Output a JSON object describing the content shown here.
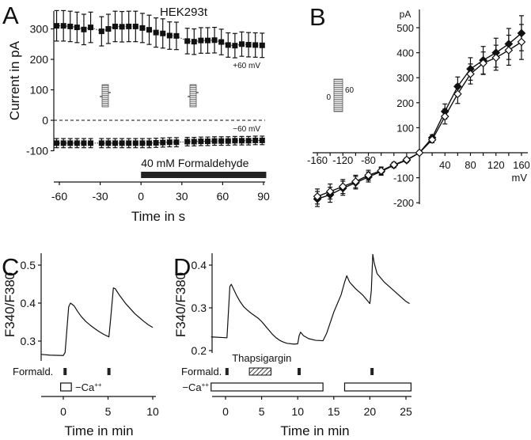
{
  "chart_data": [
    {
      "panel": "A",
      "type": "line",
      "title": "HEK293t",
      "xlabel": "Time in s",
      "ylabel": "Current in pA",
      "xlim": [
        -65,
        92
      ],
      "ylim": [
        -100,
        360
      ],
      "xticks": [
        -60,
        -30,
        0,
        30,
        60,
        90
      ],
      "yticks": [
        300,
        200,
        100,
        0,
        -100
      ],
      "annotation": {
        "label": "40 mM Formaldehyde",
        "range": [
          0,
          92
        ]
      },
      "series": [
        {
          "name": "+60 mV",
          "x": [
            -62,
            -57,
            -52,
            -47,
            -42,
            -37,
            -29,
            -24,
            -19,
            -14,
            -9,
            -4,
            1,
            6,
            11,
            16,
            21,
            26,
            34,
            39,
            44,
            49,
            54,
            59,
            64,
            69,
            74,
            79,
            84,
            89
          ],
          "y": [
            310,
            310,
            308,
            305,
            298,
            305,
            292,
            300,
            308,
            307,
            308,
            308,
            303,
            297,
            288,
            285,
            278,
            277,
            260,
            258,
            262,
            262,
            263,
            257,
            247,
            245,
            250,
            248,
            247,
            246
          ],
          "err": [
            50,
            50,
            50,
            50,
            50,
            50,
            48,
            48,
            50,
            50,
            50,
            50,
            48,
            48,
            48,
            48,
            45,
            45,
            42,
            42,
            42,
            42,
            42,
            42,
            40,
            40,
            40,
            40,
            40,
            40
          ]
        },
        {
          "name": "−60 mV",
          "x": [
            -62,
            -57,
            -52,
            -47,
            -42,
            -37,
            -29,
            -24,
            -19,
            -14,
            -9,
            -4,
            1,
            6,
            11,
            16,
            21,
            26,
            34,
            39,
            44,
            49,
            54,
            59,
            64,
            69,
            74,
            79,
            84,
            89
          ],
          "y": [
            -75,
            -75,
            -75,
            -75,
            -75,
            -75,
            -75,
            -75,
            -75,
            -75,
            -75,
            -75,
            -75,
            -75,
            -74,
            -73,
            -72,
            -72,
            -70,
            -70,
            -69,
            -69,
            -68,
            -68,
            -68,
            -67,
            -67,
            -67,
            -66,
            -66
          ],
          "err": [
            15,
            15,
            15,
            15,
            15,
            15,
            15,
            15,
            15,
            15,
            15,
            15,
            15,
            15,
            15,
            15,
            15,
            15,
            14,
            14,
            14,
            14,
            14,
            14,
            14,
            14,
            14,
            14,
            14,
            14
          ]
        }
      ],
      "protocol_labels": [
        "-30",
        "30"
      ]
    },
    {
      "panel": "B",
      "type": "line",
      "xlabel": "mV",
      "ylabel": "pA",
      "xlim": [
        -165,
        165
      ],
      "ylim": [
        -210,
        560
      ],
      "xticks": [
        -160,
        -120,
        -80,
        40,
        80,
        120,
        160
      ],
      "yticks": [
        500,
        400,
        300,
        200,
        100,
        -100,
        -200
      ],
      "protocol_labels": [
        "0",
        "60"
      ],
      "series": [
        {
          "name": "filled",
          "marker": "filled-diamond",
          "x": [
            -160,
            -140,
            -120,
            -100,
            -80,
            -60,
            -40,
            -20,
            0,
            20,
            40,
            60,
            80,
            100,
            120,
            140,
            160
          ],
          "y": [
            -185,
            -168,
            -142,
            -120,
            -97,
            -75,
            -50,
            -30,
            0,
            60,
            165,
            265,
            335,
            370,
            400,
            435,
            478
          ],
          "err": [
            30,
            30,
            28,
            25,
            20,
            15,
            10,
            8,
            0,
            12,
            30,
            38,
            45,
            55,
            58,
            62,
            70
          ]
        },
        {
          "name": "open",
          "marker": "open-diamond",
          "x": [
            -160,
            -140,
            -120,
            -100,
            -80,
            -60,
            -40,
            -20,
            0,
            20,
            40,
            60,
            80,
            100,
            120,
            140,
            160
          ],
          "y": [
            -175,
            -155,
            -135,
            -115,
            -90,
            -72,
            -48,
            -28,
            0,
            52,
            145,
            235,
            315,
            358,
            380,
            410,
            443
          ],
          "err": [
            30,
            30,
            28,
            25,
            20,
            15,
            10,
            8,
            0,
            12,
            30,
            38,
            40,
            45,
            50,
            60,
            70
          ]
        }
      ]
    },
    {
      "panel": "C",
      "type": "line",
      "xlabel": "Time in min",
      "ylabel": "F340/F380",
      "xlim": [
        -2.5,
        10
      ],
      "ylim": [
        0.25,
        0.53
      ],
      "xticks": [
        0,
        5,
        10
      ],
      "yticks": [
        0.5,
        0.4,
        0.3
      ],
      "formald_label": "Formald.",
      "formald_times": [
        0.2,
        5.1
      ],
      "ca_label": "−Ca",
      "ca_sup": "++",
      "ca_ranges": [
        [
          -0.3,
          0.9
        ]
      ],
      "trace": [
        [
          -2.5,
          0.265
        ],
        [
          -1.5,
          0.263
        ],
        [
          0,
          0.262
        ],
        [
          0.2,
          0.27
        ],
        [
          0.4,
          0.33
        ],
        [
          0.6,
          0.39
        ],
        [
          0.8,
          0.4
        ],
        [
          1.2,
          0.393
        ],
        [
          1.6,
          0.378
        ],
        [
          2,
          0.365
        ],
        [
          2.5,
          0.352
        ],
        [
          3,
          0.342
        ],
        [
          3.5,
          0.333
        ],
        [
          4,
          0.325
        ],
        [
          4.5,
          0.318
        ],
        [
          5.1,
          0.311
        ],
        [
          5.3,
          0.36
        ],
        [
          5.6,
          0.44
        ],
        [
          5.8,
          0.438
        ],
        [
          6.3,
          0.42
        ],
        [
          7,
          0.398
        ],
        [
          7.5,
          0.385
        ],
        [
          8,
          0.372
        ],
        [
          8.5,
          0.362
        ],
        [
          9,
          0.352
        ],
        [
          9.5,
          0.343
        ],
        [
          10,
          0.336
        ]
      ]
    },
    {
      "panel": "D",
      "type": "line",
      "xlabel": "Time in min",
      "ylabel": "F340/F380",
      "xlim": [
        -2,
        26
      ],
      "ylim": [
        0.2,
        0.43
      ],
      "xticks": [
        0,
        5,
        10,
        15,
        20,
        25
      ],
      "yticks": [
        0.4,
        0.3,
        0.2
      ],
      "formald_label": "Formald.",
      "formald_times": [
        0.2,
        10.2,
        20.3
      ],
      "thapsigargin_label": "Thapsigargin",
      "thapsigargin_range": [
        3.3,
        6.3
      ],
      "ca_label": "−Ca",
      "ca_sup": "++",
      "ca_ranges": [
        [
          -2,
          13.5
        ],
        [
          16.5,
          25.7
        ]
      ],
      "trace": [
        [
          -2,
          0.232
        ],
        [
          0.2,
          0.23
        ],
        [
          0.4,
          0.29
        ],
        [
          0.6,
          0.35
        ],
        [
          0.8,
          0.355
        ],
        [
          1,
          0.348
        ],
        [
          1.5,
          0.33
        ],
        [
          2,
          0.315
        ],
        [
          2.5,
          0.303
        ],
        [
          3,
          0.295
        ],
        [
          3.5,
          0.288
        ],
        [
          4,
          0.282
        ],
        [
          4.5,
          0.276
        ],
        [
          5,
          0.268
        ],
        [
          5.5,
          0.258
        ],
        [
          6,
          0.248
        ],
        [
          6.5,
          0.238
        ],
        [
          7,
          0.23
        ],
        [
          7.5,
          0.224
        ],
        [
          8,
          0.22
        ],
        [
          8.5,
          0.217
        ],
        [
          9.5,
          0.215
        ],
        [
          10,
          0.216
        ],
        [
          10.2,
          0.235
        ],
        [
          10.4,
          0.243
        ],
        [
          10.8,
          0.235
        ],
        [
          11.5,
          0.228
        ],
        [
          12.5,
          0.224
        ],
        [
          13.5,
          0.223
        ],
        [
          14,
          0.24
        ],
        [
          15,
          0.29
        ],
        [
          16,
          0.33
        ],
        [
          16.5,
          0.36
        ],
        [
          16.8,
          0.375
        ],
        [
          17.2,
          0.36
        ],
        [
          18,
          0.345
        ],
        [
          19,
          0.33
        ],
        [
          20,
          0.31
        ],
        [
          20.2,
          0.34
        ],
        [
          20.4,
          0.425
        ],
        [
          20.6,
          0.405
        ],
        [
          21,
          0.38
        ],
        [
          22,
          0.36
        ],
        [
          23,
          0.345
        ],
        [
          24,
          0.33
        ],
        [
          25,
          0.315
        ],
        [
          25.5,
          0.31
        ]
      ]
    }
  ]
}
